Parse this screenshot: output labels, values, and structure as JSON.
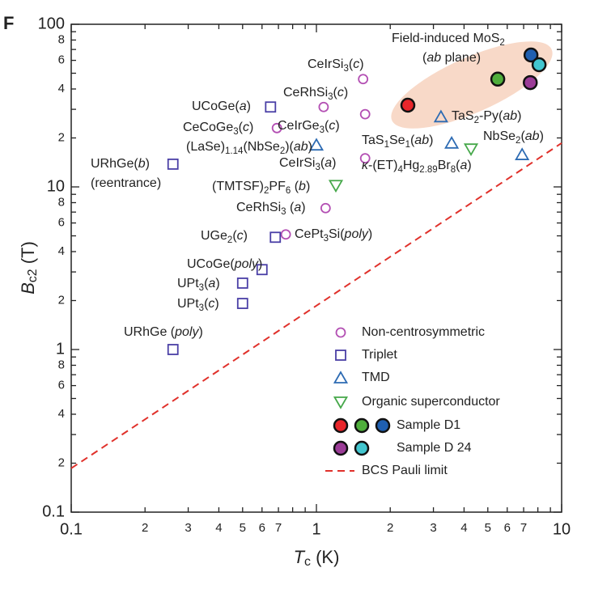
{
  "chart_data": {
    "type": "scatter",
    "panel_label": "F",
    "x_label": [
      {
        "text": "T",
        "style": "italic"
      },
      {
        "text": "c",
        "style": "sub"
      },
      {
        "text": " (K)"
      }
    ],
    "y_label": [
      {
        "text": "B",
        "style": "italic"
      },
      {
        "text": "c2",
        "style": "sub"
      },
      {
        "text": " (T)"
      }
    ],
    "xscale": "log",
    "yscale": "log",
    "xlim": [
      0.1,
      10
    ],
    "ylim": [
      0.1,
      100
    ],
    "xticks": [
      0.1,
      {
        "value": 0.2,
        "label": "2"
      },
      {
        "value": 0.3,
        "label": "3"
      },
      {
        "value": 0.4,
        "label": "4"
      },
      {
        "value": 0.5,
        "label": "5"
      },
      {
        "value": 0.6,
        "label": "6"
      },
      {
        "value": 0.7,
        "label": "7"
      },
      1,
      {
        "value": 2,
        "label": "2"
      },
      {
        "value": 3,
        "label": "3"
      },
      {
        "value": 4,
        "label": "4"
      },
      {
        "value": 5,
        "label": "5"
      },
      {
        "value": 6,
        "label": "6"
      },
      {
        "value": 7,
        "label": "7"
      },
      10
    ],
    "x_minor_ticks": [
      0.8,
      0.9,
      8,
      9
    ],
    "yticks": [
      0.1,
      {
        "value": 0.2,
        "label": "2"
      },
      {
        "value": 0.4,
        "label": "4"
      },
      {
        "value": 0.6,
        "label": "6"
      },
      {
        "value": 0.8,
        "label": "8"
      },
      1,
      2,
      4,
      6,
      8,
      10,
      {
        "value": 20,
        "label": "2"
      },
      {
        "value": 40,
        "label": "4"
      },
      {
        "value": 60,
        "label": "6"
      },
      {
        "value": 80,
        "label": "8"
      },
      100
    ],
    "y_minor_ticks": [
      0.3,
      0.5,
      0.7,
      0.9,
      3,
      5,
      7,
      9,
      30,
      50,
      70,
      90
    ],
    "series": [
      {
        "name": "Non-centrosymmetric",
        "marker": "circle",
        "color": "#b34fb3",
        "x": [
          1.55,
          1.07,
          1.58,
          0.69,
          1.58,
          1.09,
          0.75
        ],
        "values": [
          46,
          31,
          28,
          23,
          15,
          7.4,
          5.1
        ]
      },
      {
        "name": "Triplet",
        "marker": "square",
        "color": "#4a3fa6",
        "x": [
          0.65,
          0.26,
          0.68,
          0.6,
          0.5,
          0.5,
          0.26
        ],
        "values": [
          31,
          13.8,
          4.9,
          3.1,
          2.56,
          1.92,
          1.0
        ]
      },
      {
        "name": "TMD",
        "marker": "triangle",
        "color": "#2d6bb3",
        "x": [
          1.0,
          3.22,
          3.56,
          6.9
        ],
        "values": [
          18.1,
          27,
          18.6,
          15.8
        ]
      },
      {
        "name": "Organic superconductor",
        "marker": "triangle-down",
        "color": "#46a84a",
        "x": [
          1.2,
          4.27
        ],
        "values": [
          10.2,
          17.1
        ]
      },
      {
        "name": "Sample D1",
        "marker": "filled",
        "colors": [
          "#e8262b",
          "#4fae3c",
          "#1f5fb0"
        ],
        "x": [
          2.36,
          5.49,
          7.5
        ],
        "values": [
          31.8,
          46,
          64.7
        ]
      },
      {
        "name": "Sample D 24",
        "marker": "filled",
        "colors": [
          "#9b3c97",
          "#43c6cf"
        ],
        "x": [
          7.45,
          8.09
        ],
        "values": [
          43.8,
          56.4
        ]
      },
      {
        "name": "BCS Pauli limit",
        "marker": "dashed-line",
        "color": "#e0312b",
        "x": [
          0.1,
          10
        ],
        "values": [
          0.186,
          18.6
        ]
      }
    ],
    "annotations": [
      [
        {
          "text": "CeIrSi"
        },
        {
          "text": "3",
          "style": "sub"
        },
        {
          "text": "("
        },
        {
          "text": "c",
          "style": "italic"
        },
        {
          "text": ")"
        }
      ],
      [
        {
          "text": "CeRhSi"
        },
        {
          "text": "3",
          "style": "sub"
        },
        {
          "text": "("
        },
        {
          "text": "c",
          "style": "italic"
        },
        {
          "text": ")"
        }
      ],
      [
        {
          "text": "UCoGe("
        },
        {
          "text": "a",
          "style": "italic"
        },
        {
          "text": ")"
        }
      ],
      [
        {
          "text": "CeIrGe"
        },
        {
          "text": "3",
          "style": "sub"
        },
        {
          "text": "("
        },
        {
          "text": "c",
          "style": "italic"
        },
        {
          "text": ")"
        }
      ],
      [
        {
          "text": "CeCoGe"
        },
        {
          "text": "3",
          "style": "sub"
        },
        {
          "text": "("
        },
        {
          "text": "c",
          "style": "italic"
        },
        {
          "text": ")"
        }
      ],
      [
        {
          "text": "(LaSe)"
        },
        {
          "text": "1.14",
          "style": "sub"
        },
        {
          "text": "(NbSe"
        },
        {
          "text": "2",
          "style": "sub"
        },
        {
          "text": ")("
        },
        {
          "text": "ab",
          "style": "italic"
        },
        {
          "text": ")"
        }
      ],
      [
        {
          "text": "CeIrSi"
        },
        {
          "text": "3",
          "style": "sub"
        },
        {
          "text": "("
        },
        {
          "text": "a",
          "style": "italic"
        },
        {
          "text": ")"
        }
      ],
      [
        {
          "text": "URhGe("
        },
        {
          "text": "b",
          "style": "italic"
        },
        {
          "text": ")"
        }
      ],
      [
        {
          "text": "(reentrance)"
        }
      ],
      [
        {
          "text": "(TMTSF)"
        },
        {
          "text": "2",
          "style": "sub"
        },
        {
          "text": "PF"
        },
        {
          "text": "6",
          "style": "sub"
        },
        {
          "text": " ("
        },
        {
          "text": "b",
          "style": "italic"
        },
        {
          "text": ")"
        }
      ],
      [
        {
          "text": "CeRhSi"
        },
        {
          "text": "3",
          "style": "sub"
        },
        {
          "text": " ("
        },
        {
          "text": "a",
          "style": "italic"
        },
        {
          "text": ")"
        }
      ],
      [
        {
          "text": "UGe"
        },
        {
          "text": "2",
          "style": "sub"
        },
        {
          "text": "("
        },
        {
          "text": "c",
          "style": "italic"
        },
        {
          "text": ")"
        }
      ],
      [
        {
          "text": "CePt"
        },
        {
          "text": "3",
          "style": "sub"
        },
        {
          "text": "Si("
        },
        {
          "text": "poly",
          "style": "italic"
        },
        {
          "text": ")"
        }
      ],
      [
        {
          "text": "UCoGe("
        },
        {
          "text": "poly",
          "style": "italic"
        },
        {
          "text": ")"
        }
      ],
      [
        {
          "text": "UPt"
        },
        {
          "text": "3",
          "style": "sub"
        },
        {
          "text": "("
        },
        {
          "text": "a",
          "style": "italic"
        },
        {
          "text": ")"
        }
      ],
      [
        {
          "text": "UPt"
        },
        {
          "text": "3",
          "style": "sub"
        },
        {
          "text": "("
        },
        {
          "text": "c",
          "style": "italic"
        },
        {
          "text": ")"
        }
      ],
      [
        {
          "text": "URhGe ("
        },
        {
          "text": "poly",
          "style": "italic"
        },
        {
          "text": ")"
        }
      ],
      [
        {
          "text": "Field-induced MoS"
        },
        {
          "text": "2",
          "style": "sub"
        }
      ],
      [
        {
          "text": "("
        },
        {
          "text": "ab",
          "style": "italic"
        },
        {
          "text": " plane)"
        }
      ],
      [
        {
          "text": "TaS"
        },
        {
          "text": "2",
          "style": "sub"
        },
        {
          "text": "-Py("
        },
        {
          "text": "ab",
          "style": "italic"
        },
        {
          "text": ")"
        }
      ],
      [
        {
          "text": "TaS"
        },
        {
          "text": "1",
          "style": "sub"
        },
        {
          "text": "Se"
        },
        {
          "text": "1",
          "style": "sub"
        },
        {
          "text": "("
        },
        {
          "text": "ab",
          "style": "italic"
        },
        {
          "text": ")"
        }
      ],
      [
        {
          "text": "NbSe"
        },
        {
          "text": "2",
          "style": "sub"
        },
        {
          "text": "("
        },
        {
          "text": "ab",
          "style": "italic"
        },
        {
          "text": ")"
        }
      ],
      [
        {
          "text": "κ",
          "style": "italic"
        },
        {
          "text": "-(ET)"
        },
        {
          "text": "4",
          "style": "sub"
        },
        {
          "text": "Hg"
        },
        {
          "text": "2.89",
          "style": "sub"
        },
        {
          "text": "Br"
        },
        {
          "text": "8",
          "style": "sub"
        },
        {
          "text": "("
        },
        {
          "text": "a",
          "style": "italic"
        },
        {
          "text": ")"
        }
      ]
    ]
  }
}
